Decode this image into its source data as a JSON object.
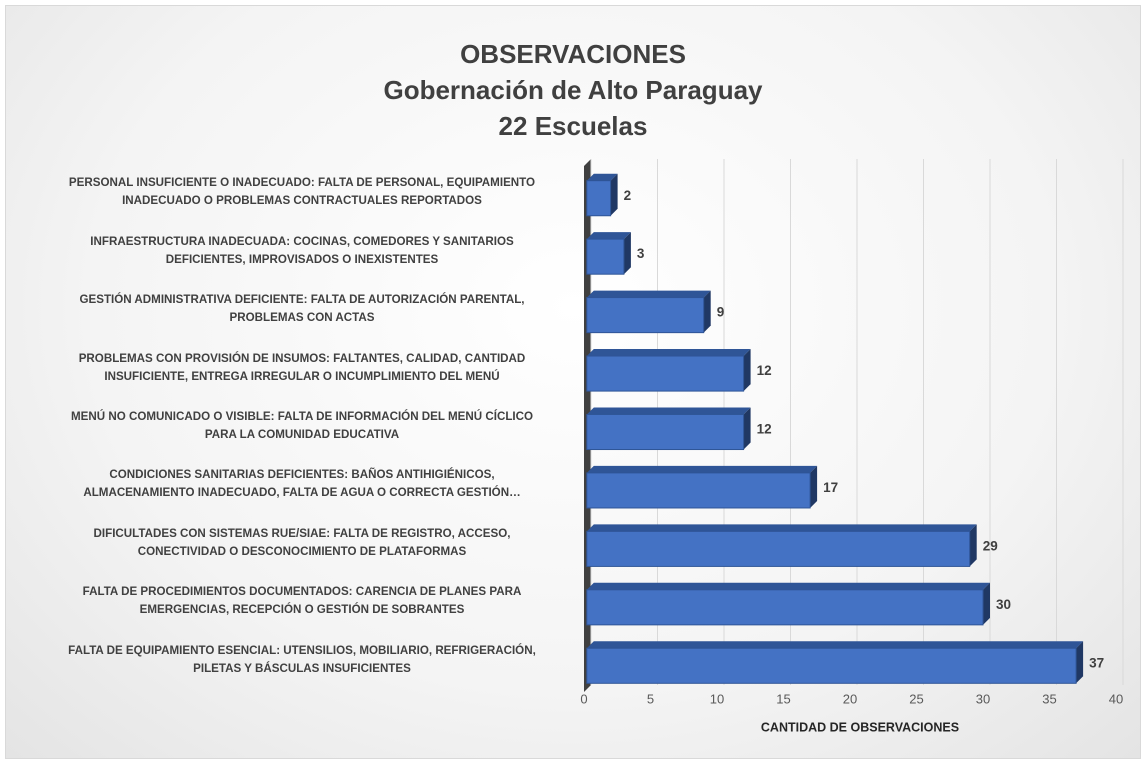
{
  "chart_data": {
    "type": "barh",
    "title": [
      "OBSERVACIONES",
      "Gobernación de Alto Paraguay",
      "22 Escuelas"
    ],
    "xlabel": "CANTIDAD DE OBSERVACIONES",
    "categories": [
      "PERSONAL INSUFICIENTE O INADECUADO: FALTA DE PERSONAL, EQUIPAMIENTO\nINADECUADO O PROBLEMAS CONTRACTUALES REPORTADOS",
      "INFRAESTRUCTURA INADECUADA: COCINAS, COMEDORES Y SANITARIOS\nDEFICIENTES, IMPROVISADOS O INEXISTENTES",
      "GESTIÓN ADMINISTRATIVA DEFICIENTE: FALTA DE AUTORIZACIÓN PARENTAL,\nPROBLEMAS CON ACTAS",
      "PROBLEMAS CON PROVISIÓN DE INSUMOS: FALTANTES, CALIDAD, CANTIDAD\nINSUFICIENTE, ENTREGA IRREGULAR O INCUMPLIMIENTO DEL MENÚ",
      "MENÚ NO COMUNICADO O VISIBLE: FALTA DE INFORMACIÓN DEL MENÚ CÍCLICO\nPARA LA COMUNIDAD EDUCATIVA",
      "CONDICIONES SANITARIAS DEFICIENTES: BAÑOS ANTIHIGIÉNICOS,\nALMACENAMIENTO INADECUADO, FALTA DE AGUA O CORRECTA GESTIÓN…",
      "DIFICULTADES CON SISTEMAS RUE/SIAE: FALTA DE REGISTRO, ACCESO,\nCONECTIVIDAD O DESCONOCIMIENTO DE PLATAFORMAS",
      "FALTA DE PROCEDIMIENTOS DOCUMENTADOS: CARENCIA DE PLANES PARA\nEMERGENCIAS, RECEPCIÓN O GESTIÓN DE SOBRANTES",
      "FALTA DE EQUIPAMIENTO ESENCIAL: UTENSILIOS, MOBILIARIO, REFRIGERACIÓN,\nPILETAS Y BÁSCULAS INSUFICIENTES"
    ],
    "values": [
      2,
      3,
      9,
      12,
      12,
      17,
      29,
      30,
      37
    ],
    "color": "#4472c4",
    "xlim": [
      0,
      40
    ],
    "xticks": [
      0,
      5,
      10,
      15,
      20,
      25,
      30,
      35,
      40
    ],
    "grid": true
  }
}
